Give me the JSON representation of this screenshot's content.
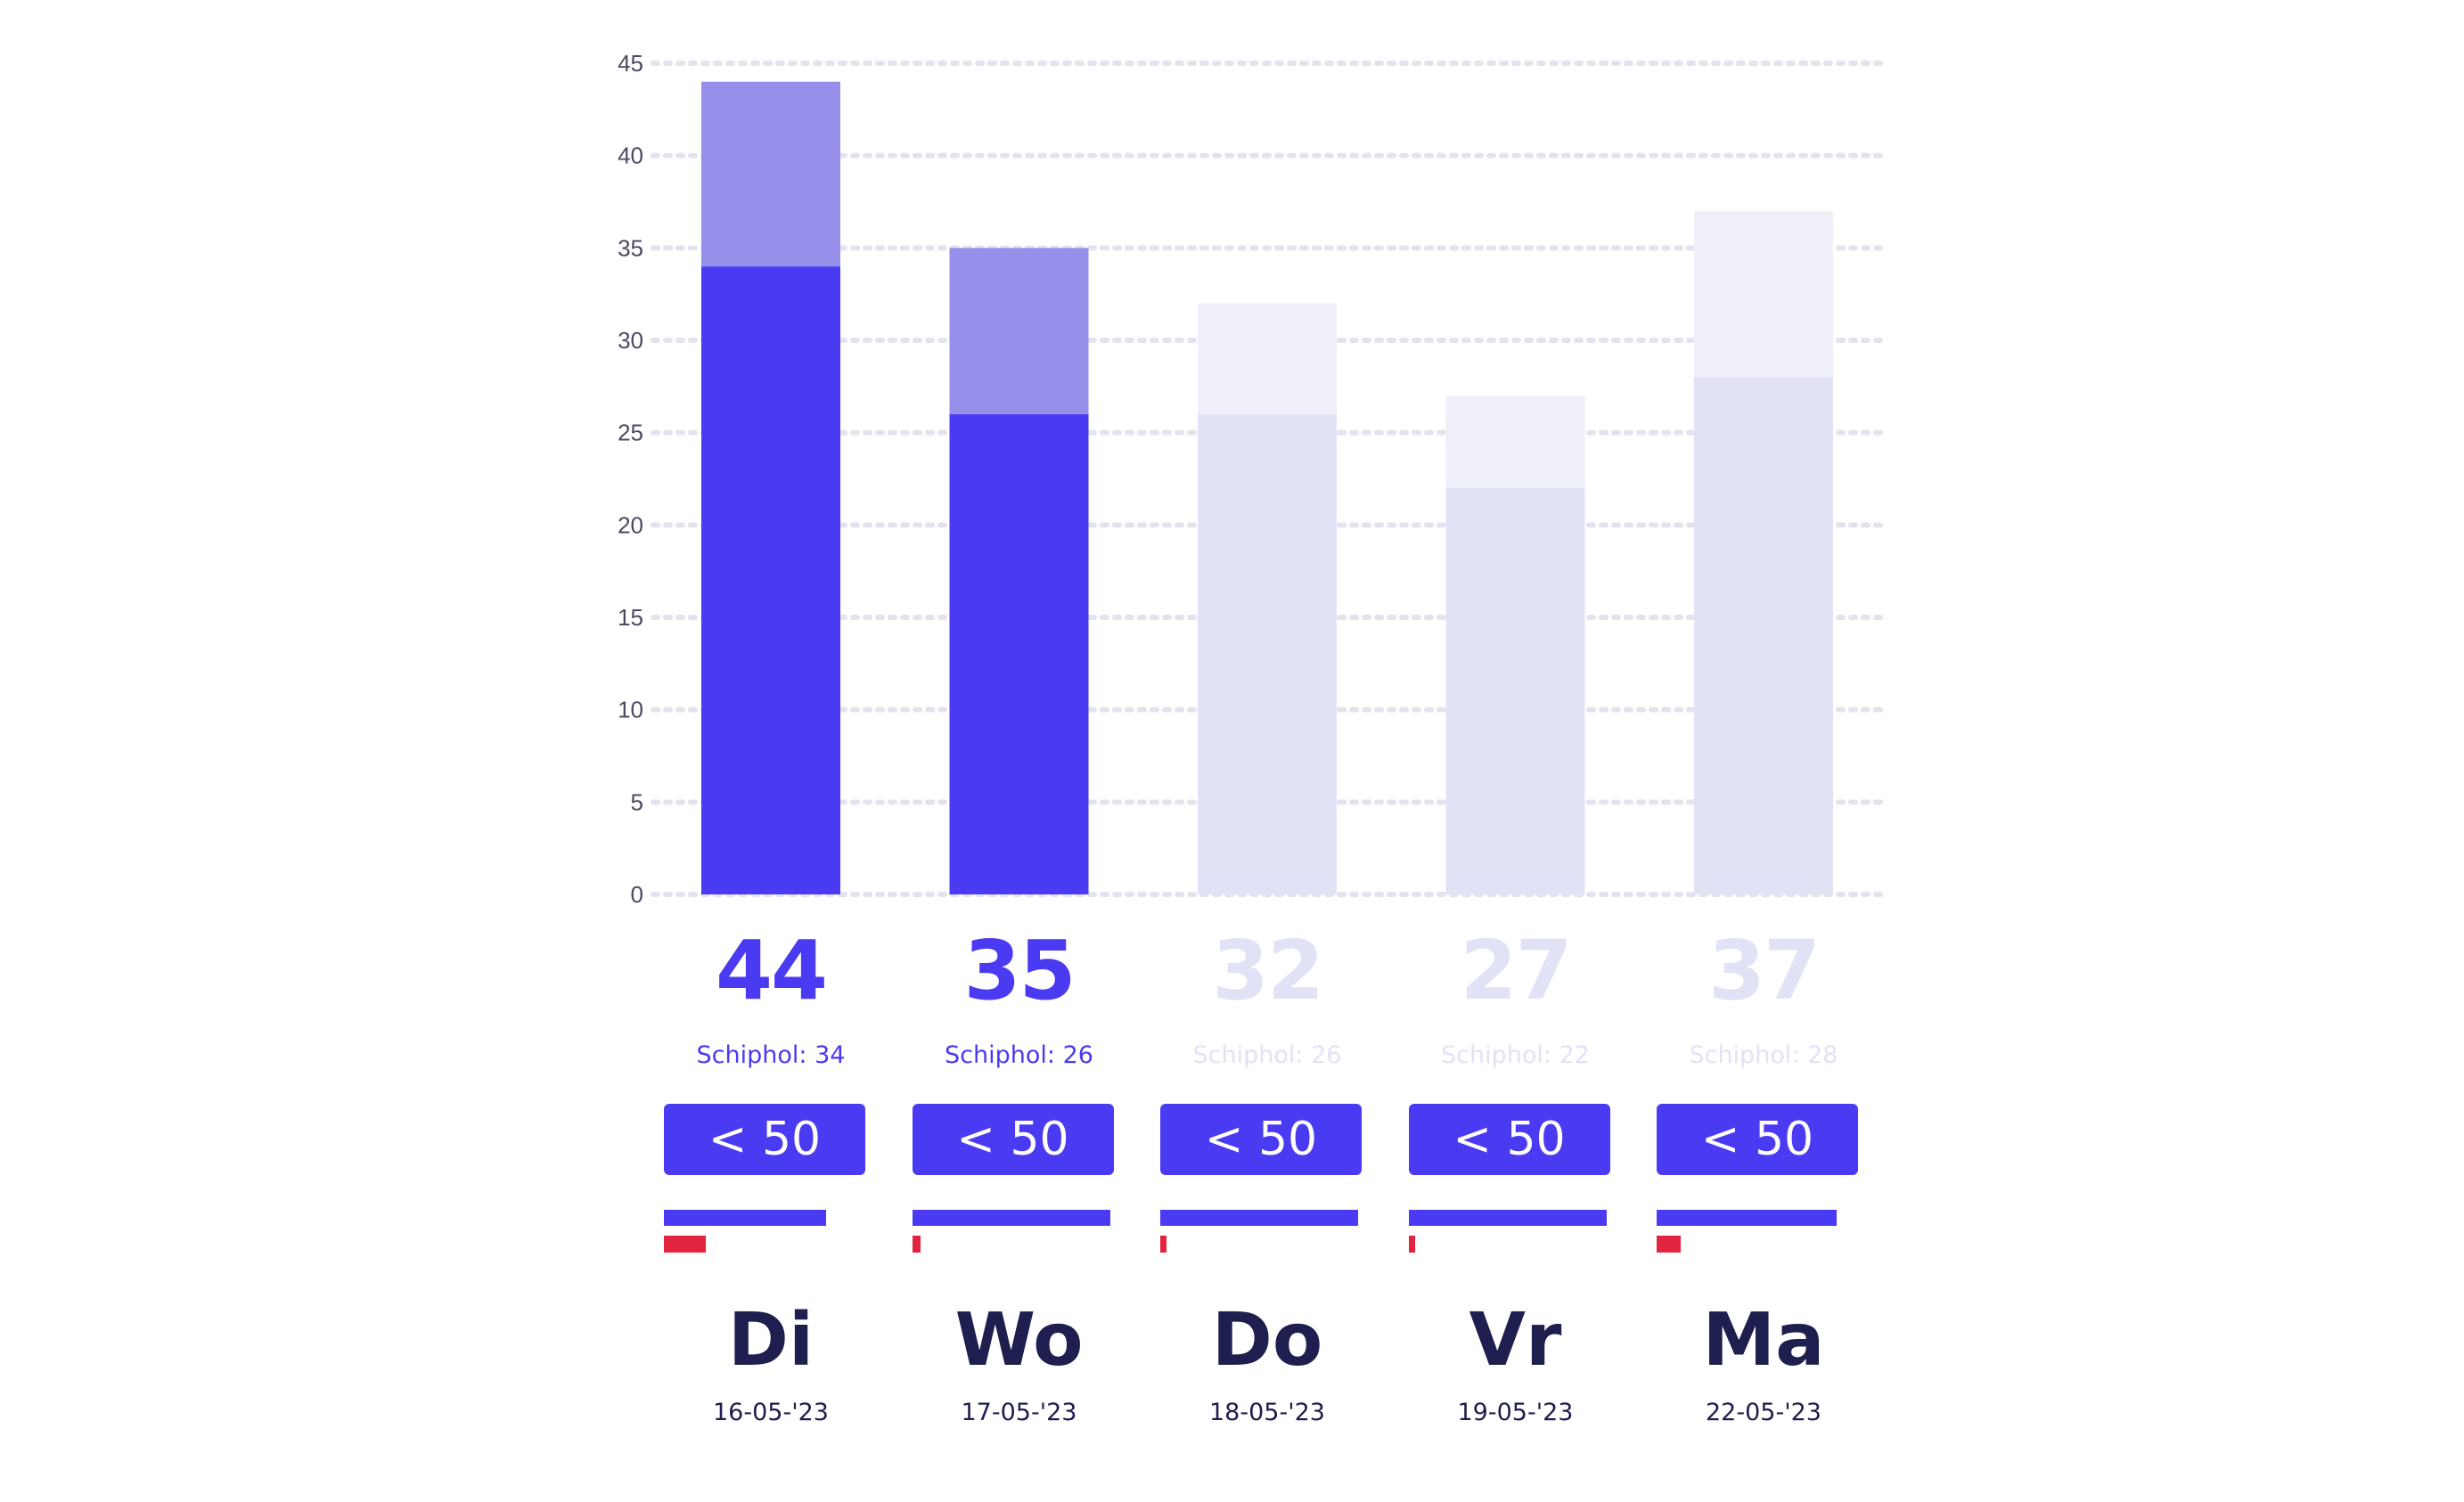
{
  "chart_data": {
    "type": "bar",
    "stacked": true,
    "y_ticks": [
      "0",
      "5",
      "10",
      "15",
      "20",
      "25",
      "30",
      "35",
      "40",
      "45"
    ],
    "ylim": [
      0,
      45
    ],
    "grid": true,
    "categories": [
      "Di",
      "Wo",
      "Do",
      "Vr",
      "Ma"
    ],
    "totals": [
      44,
      35,
      32,
      27,
      37
    ],
    "schiphol": [
      34,
      26,
      26,
      22,
      28
    ],
    "active": [
      true,
      true,
      false,
      false,
      false
    ]
  },
  "days": [
    {
      "total": "44",
      "schiphol": "Schiphol: 34",
      "badge": "< 50",
      "day": "Di",
      "date": "16-05-'23",
      "bar_primary": 0.82,
      "bar_secondary": 0.21
    },
    {
      "total": "35",
      "schiphol": "Schiphol: 26",
      "badge": "< 50",
      "day": "Wo",
      "date": "17-05-'23",
      "bar_primary": 1.0,
      "bar_secondary": 0.04
    },
    {
      "total": "32",
      "schiphol": "Schiphol: 26",
      "badge": "< 50",
      "day": "Do",
      "date": "18-05-'23",
      "bar_primary": 1.0,
      "bar_secondary": 0.03
    },
    {
      "total": "27",
      "schiphol": "Schiphol: 22",
      "badge": "< 50",
      "day": "Vr",
      "date": "19-05-'23",
      "bar_primary": 1.0,
      "bar_secondary": 0.03
    },
    {
      "total": "37",
      "schiphol": "Schiphol: 28",
      "badge": "< 50",
      "day": "Ma",
      "date": "22-05-'23",
      "bar_primary": 0.91,
      "bar_secondary": 0.12
    }
  ],
  "colors": {
    "active_base": "#4a3af1",
    "active_top": "#958fea",
    "inactive_base": "#e2e2f7",
    "inactive_top": "#efeffa",
    "inactive_text": "#e2e2f7",
    "grid": "#e3e3ee",
    "alert": "#e3243f",
    "ink": "#1e1e4f"
  }
}
